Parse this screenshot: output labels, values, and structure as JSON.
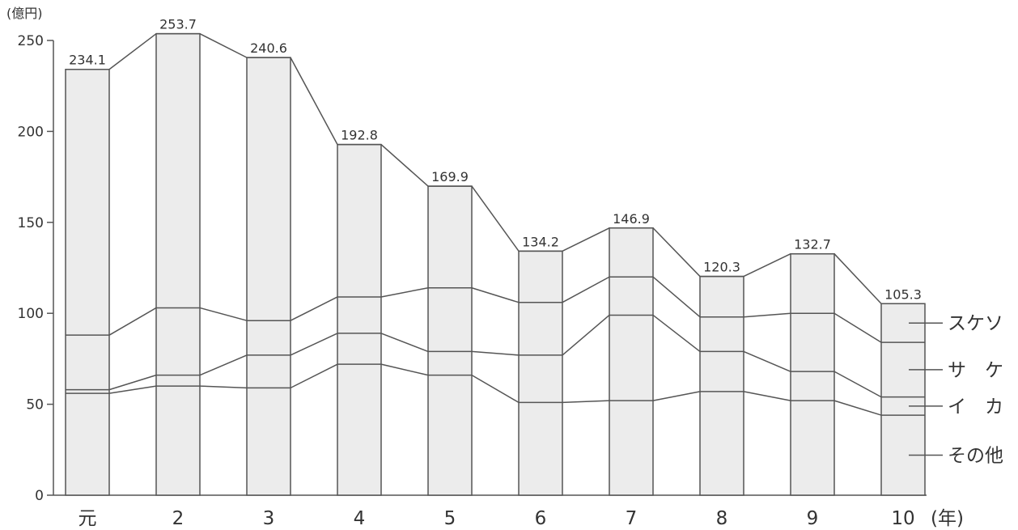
{
  "chart_data": {
    "type": "bar",
    "stacked": true,
    "y_unit": "(億円)",
    "x_unit": "(年)",
    "categories": [
      "元",
      "2",
      "3",
      "4",
      "5",
      "6",
      "7",
      "8",
      "9",
      "10"
    ],
    "totals": [
      "234.1",
      "253.7",
      "240.6",
      "192.8",
      "169.9",
      "134.2",
      "146.9",
      "120.3",
      "132.7",
      "105.3"
    ],
    "ylim": [
      0,
      250
    ],
    "yticks": [
      0,
      50,
      100,
      150,
      200,
      250
    ],
    "series": [
      {
        "name": "その他",
        "values": [
          56,
          60,
          59,
          72,
          66,
          51,
          52,
          57,
          52,
          44
        ]
      },
      {
        "name": "イ　カ",
        "values": [
          2,
          6,
          18,
          17,
          13,
          26,
          47,
          22,
          16,
          10
        ]
      },
      {
        "name": "サ　ケ",
        "values": [
          30,
          37,
          19,
          20,
          35,
          29,
          21,
          19,
          32,
          30
        ]
      },
      {
        "name": "スケソ",
        "values": [
          146.1,
          150.7,
          144.6,
          83.8,
          55.9,
          28.2,
          26.9,
          22.3,
          32.7,
          21.3
        ]
      }
    ],
    "legend": "right"
  }
}
